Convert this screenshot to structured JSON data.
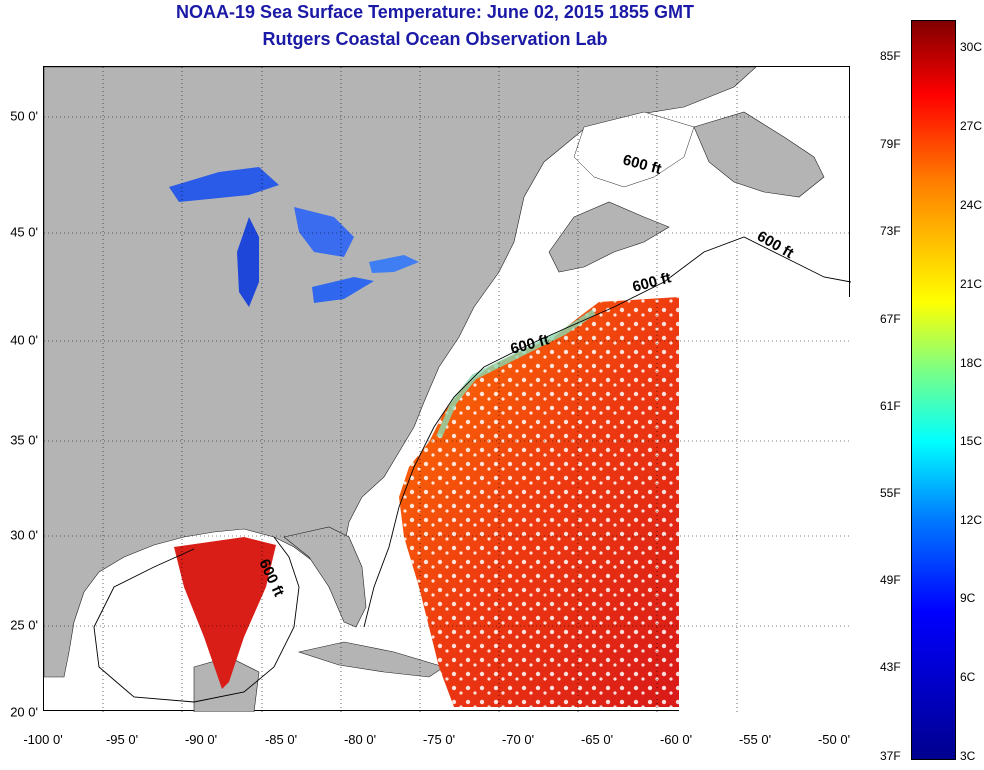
{
  "title_line1": "NOAA-19 Sea Surface Temperature:  June 02, 2015 1855 GMT",
  "title_line2": "Rutgers Coastal Ocean Observation Lab",
  "x_ticks": [
    "-100 0'",
    "-95 0'",
    "-90 0'",
    "-85 0'",
    "-80 0'",
    "-75 0'",
    "-70 0'",
    "-65 0'",
    "-60 0'",
    "-55 0'",
    "-50 0'"
  ],
  "y_ticks": [
    "50 0'",
    "45 0'",
    "40 0'",
    "35 0'",
    "30 0'",
    "25 0'",
    "20 0'"
  ],
  "depth_label": "600 ft",
  "colorbar": {
    "fahrenheit": [
      "85F",
      "79F",
      "73F",
      "67F",
      "61F",
      "55F",
      "49F",
      "43F",
      "37F"
    ],
    "celsius": [
      "30C",
      "27C",
      "24C",
      "21C",
      "18C",
      "15C",
      "12C",
      "9C",
      "6C",
      "3C"
    ]
  },
  "colors": {
    "land": "#b4b4b4",
    "ocean_nodata": "#ffffff",
    "title": "#1a1aa6"
  }
}
